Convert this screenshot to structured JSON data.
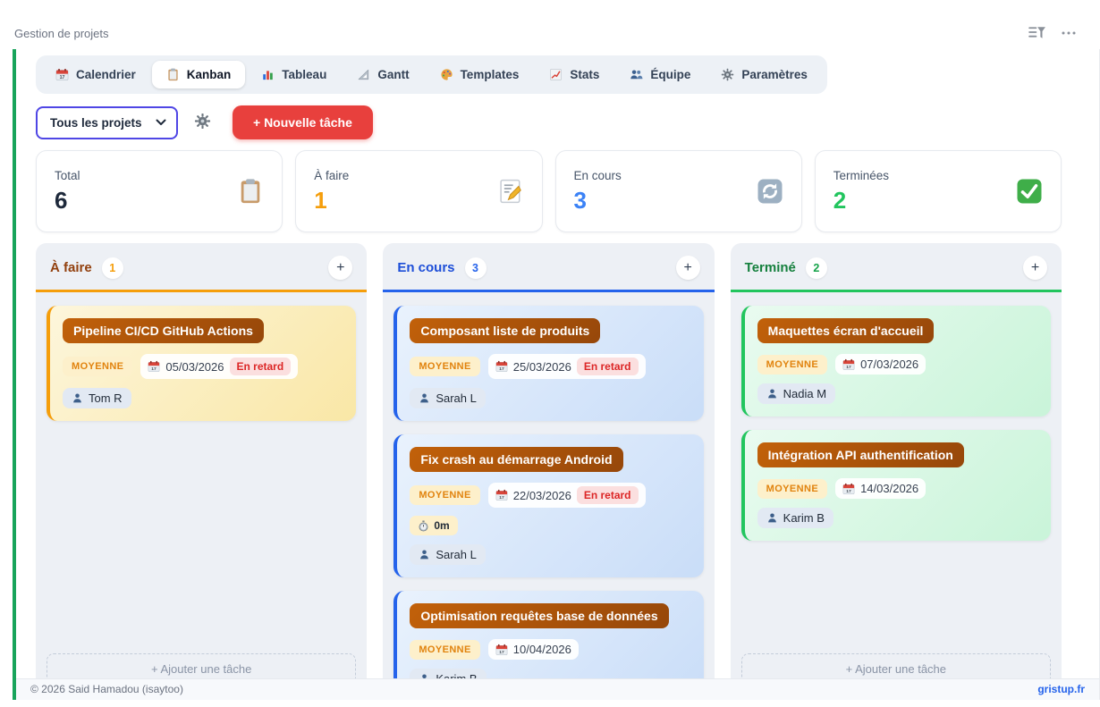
{
  "header": {
    "title": "Gestion de projets",
    "filter_icon": "filter-icon",
    "more_icon": "ellipsis-icon"
  },
  "tabs": [
    {
      "label": "Calendrier",
      "icon": "calendar-icon",
      "active": false
    },
    {
      "label": "Kanban",
      "icon": "clipboard-icon",
      "active": true
    },
    {
      "label": "Tableau",
      "icon": "bar-chart-icon",
      "active": false
    },
    {
      "label": "Gantt",
      "icon": "ruler-icon",
      "active": false
    },
    {
      "label": "Templates",
      "icon": "palette-icon",
      "active": false
    },
    {
      "label": "Stats",
      "icon": "chart-up-icon",
      "active": false
    },
    {
      "label": "Équipe",
      "icon": "team-icon",
      "active": false
    },
    {
      "label": "Paramètres",
      "icon": "gear-icon",
      "active": false
    }
  ],
  "toolbar": {
    "project_filter_value": "Tous les projets",
    "settings_icon": "gear-icon",
    "new_task_label": "+ Nouvelle tâche",
    "new_task_color": "#e8403d"
  },
  "stats": [
    {
      "label": "Total",
      "value": "6",
      "color": "#1e293b",
      "icon": "clipboard-icon"
    },
    {
      "label": "À faire",
      "value": "1",
      "color": "#f59e0b",
      "icon": "memo-icon"
    },
    {
      "label": "En cours",
      "value": "3",
      "color": "#3b82f6",
      "icon": "refresh-icon"
    },
    {
      "label": "Terminées",
      "value": "2",
      "color": "#22c55e",
      "icon": "check-icon"
    }
  ],
  "board": {
    "add_card_label": "+ Ajouter une tâche",
    "columns": [
      {
        "title": "À faire",
        "count": "1",
        "accent": "#f59e0b",
        "title_color": "#92400e",
        "count_color": "#f59e0b",
        "card_gradient": [
          "#fdf6dc",
          "#f9e7a6"
        ],
        "cards": [
          {
            "title": "Pipeline CI/CD GitHub Actions",
            "priority": "MOYENNE",
            "due_date": "05/03/2026",
            "overdue_label": "En retard",
            "assignee": "Tom R"
          }
        ]
      },
      {
        "title": "En cours",
        "count": "3",
        "accent": "#2563eb",
        "title_color": "#1d4ed8",
        "count_color": "#2563eb",
        "card_gradient": [
          "#e9f2fd",
          "#c9ddf8"
        ],
        "cards": [
          {
            "title": "Composant liste de produits",
            "priority": "MOYENNE",
            "due_date": "25/03/2026",
            "overdue_label": "En retard",
            "assignee": "Sarah L"
          },
          {
            "title": "Fix crash au démarrage Android",
            "priority": "MOYENNE",
            "due_date": "22/03/2026",
            "overdue_label": "En retard",
            "timer": "0m",
            "assignee": "Sarah L"
          },
          {
            "title": "Optimisation requêtes base de données",
            "priority": "MOYENNE",
            "due_date": "10/04/2026",
            "assignee": "Karim B"
          }
        ]
      },
      {
        "title": "Terminé",
        "count": "2",
        "accent": "#22c55e",
        "title_color": "#15803d",
        "count_color": "#16a34a",
        "card_gradient": [
          "#e9fbf0",
          "#c9f4d9"
        ],
        "cards": [
          {
            "title": "Maquettes écran d'accueil",
            "priority": "MOYENNE",
            "due_date": "07/03/2026",
            "assignee": "Nadia M"
          },
          {
            "title": "Intégration API authentification",
            "priority": "MOYENNE",
            "due_date": "14/03/2026",
            "assignee": "Karim B"
          }
        ]
      }
    ]
  },
  "footer": {
    "copyright": "© 2026 Said Hamadou (isaytoo)",
    "link": "gristup.fr"
  },
  "theme": {
    "page_accent_green": "#18a45b",
    "select_border": "#4f46e5",
    "new_task_red": "#e8403d",
    "title_chip_from": "#c2610a",
    "title_chip_to": "#96470a",
    "priority_bg": "#fdf0cb",
    "priority_color": "#e1830e",
    "overdue_bg": "#fbdfdf",
    "overdue_color": "#dc2626"
  }
}
